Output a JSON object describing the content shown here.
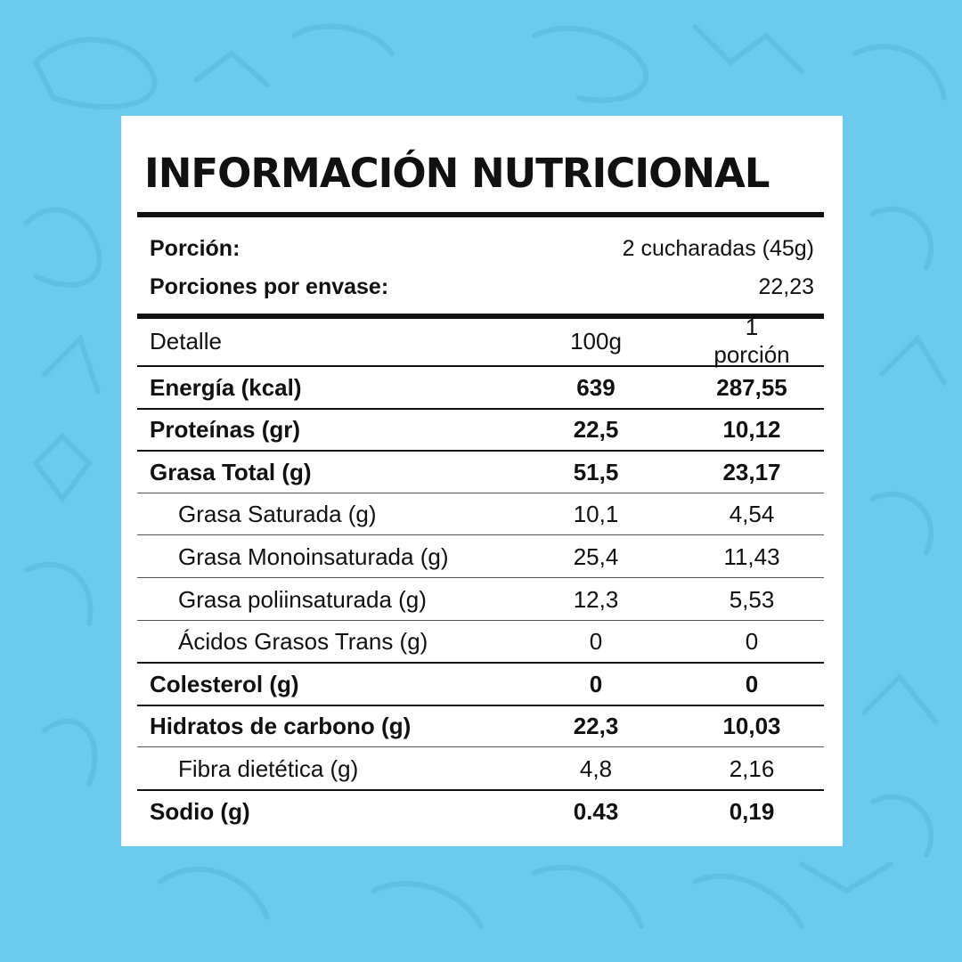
{
  "title": "INFORMACIÓN NUTRICIONAL",
  "serving": {
    "portion_label": "Porción:",
    "portion_value": "2 cucharadas (45g)",
    "per_package_label": "Porciones por envase:",
    "per_package_value": "22,23"
  },
  "table": {
    "headers": [
      "Detalle",
      "100g",
      "1 porción"
    ],
    "rows": [
      {
        "name": "Energía (kcal)",
        "per100": "639",
        "perPortion": "287,55",
        "bold": true,
        "sub": false
      },
      {
        "name": "Proteínas (gr)",
        "per100": "22,5",
        "perPortion": "10,12",
        "bold": true,
        "sub": false
      },
      {
        "name": "Grasa Total (g)",
        "per100": "51,5",
        "perPortion": "23,17",
        "bold": true,
        "sub": false
      },
      {
        "name": "Grasa Saturada (g)",
        "per100": "10,1",
        "perPortion": "4,54",
        "bold": false,
        "sub": true
      },
      {
        "name": "Grasa Monoinsaturada (g)",
        "per100": "25,4",
        "perPortion": "11,43",
        "bold": false,
        "sub": true
      },
      {
        "name": "Grasa poliinsaturada (g)",
        "per100": "12,3",
        "perPortion": "5,53",
        "bold": false,
        "sub": true
      },
      {
        "name": "Ácidos Grasos Trans (g)",
        "per100": "0",
        "perPortion": "0",
        "bold": false,
        "sub": true
      },
      {
        "name": "Colesterol (g)",
        "per100": "0",
        "perPortion": "0",
        "bold": true,
        "sub": false
      },
      {
        "name": "Hidratos de carbono (g)",
        "per100": "22,3",
        "perPortion": "10,03",
        "bold": true,
        "sub": false
      },
      {
        "name": "Fibra dietética (g)",
        "per100": "4,8",
        "perPortion": "2,16",
        "bold": false,
        "sub": true
      },
      {
        "name": "Sodio (g)",
        "per100": "0.43",
        "perPortion": "0,19",
        "bold": true,
        "sub": false
      }
    ]
  },
  "colors": {
    "background": "#6ccbec",
    "card": "#ffffff",
    "text": "#111111"
  }
}
